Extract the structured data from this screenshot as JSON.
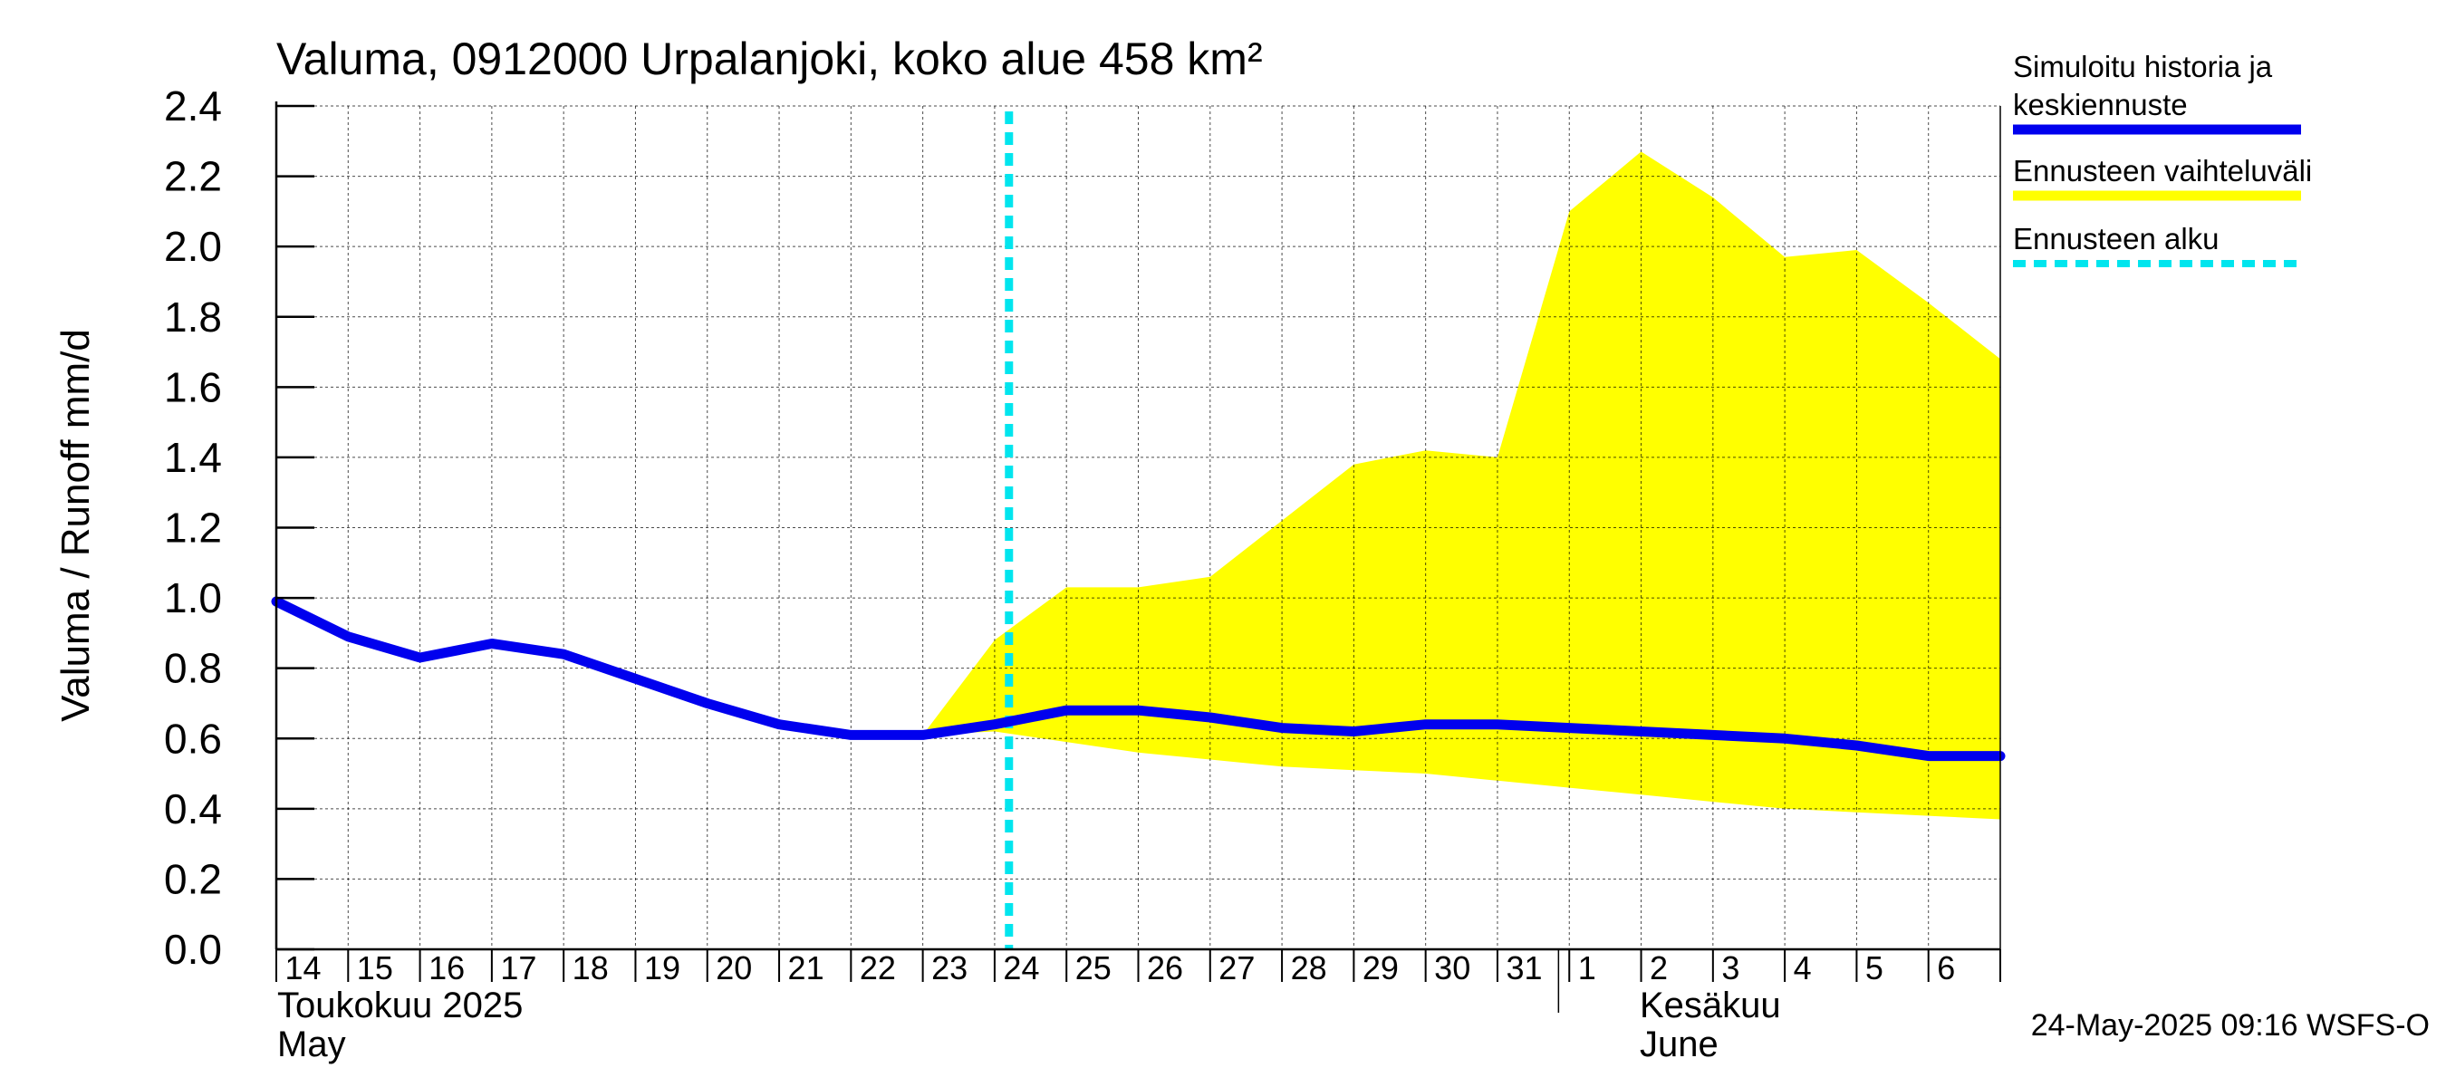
{
  "chart_data": {
    "type": "area",
    "title": "Valuma, 0912000 Urpalanjoki, koko alue 458 km²",
    "ylabel": "Valuma / Runoff    mm/d",
    "ylim": [
      0,
      2.4
    ],
    "yticks": [
      "0.0",
      "0.2",
      "0.4",
      "0.6",
      "0.8",
      "1.0",
      "1.2",
      "1.4",
      "1.6",
      "1.8",
      "2.0",
      "2.2",
      "2.4"
    ],
    "x_day_labels": [
      "14",
      "15",
      "16",
      "17",
      "18",
      "19",
      "20",
      "21",
      "22",
      "23",
      "24",
      "25",
      "26",
      "27",
      "28",
      "29",
      "30",
      "31",
      "1",
      "2",
      "3",
      "4",
      "5",
      "6"
    ],
    "month_labels": [
      {
        "fi": "Toukokuu  2025",
        "en": "May"
      },
      {
        "fi": "Kesäkuu",
        "en": "June"
      }
    ],
    "forecast_start_index": 10,
    "series": [
      {
        "name": "Simuloitu historia ja keskiennuste",
        "color": "#0000ee",
        "values": [
          0.99,
          0.89,
          0.83,
          0.87,
          0.84,
          0.77,
          0.7,
          0.64,
          0.61,
          0.61,
          0.64,
          0.68,
          0.68,
          0.66,
          0.63,
          0.62,
          0.64,
          0.64,
          0.63,
          0.62,
          0.61,
          0.6,
          0.58,
          0.55,
          0.55
        ]
      },
      {
        "name": "Ennusteen vaihteluväli",
        "color": "#ffff00",
        "x_start_index": 9,
        "upper": [
          0.61,
          0.88,
          1.03,
          1.03,
          1.06,
          1.22,
          1.38,
          1.42,
          1.4,
          2.1,
          2.27,
          2.14,
          1.97,
          1.99,
          1.84,
          1.68
        ],
        "lower": [
          0.61,
          0.62,
          0.59,
          0.56,
          0.54,
          0.52,
          0.51,
          0.5,
          0.48,
          0.46,
          0.44,
          0.42,
          0.4,
          0.39,
          0.38,
          0.37
        ]
      }
    ],
    "legend": [
      {
        "label_lines": [
          "Simuloitu historia ja",
          "keskiennuste"
        ],
        "color": "#0000ee",
        "style": "solid"
      },
      {
        "label_lines": [
          "Ennusteen vaihteluväli"
        ],
        "color": "#ffff00",
        "style": "solid"
      },
      {
        "label_lines": [
          "Ennusteen alku"
        ],
        "color": "#00e5ee",
        "style": "dashed"
      }
    ],
    "footer": "24-May-2025 09:16 WSFS-O"
  }
}
